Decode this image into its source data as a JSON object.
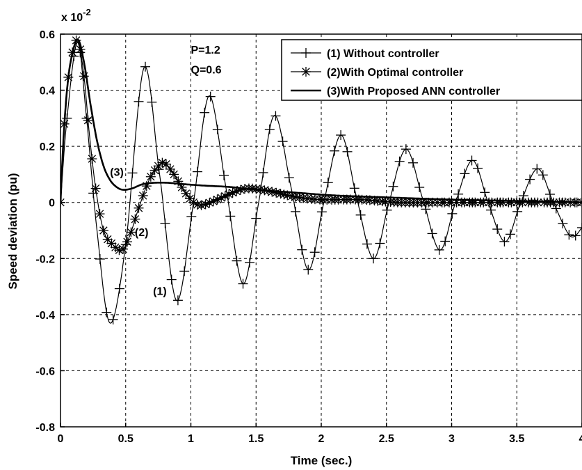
{
  "chart_data": {
    "type": "line",
    "title": "",
    "xlabel": "Time (sec.)",
    "ylabel": "Speed deviation (pu)",
    "y_multiplier": "x 10",
    "y_multiplier_exp": "-2",
    "xlim": [
      0,
      4
    ],
    "ylim": [
      -0.8,
      0.6
    ],
    "grid": true,
    "legend_position": "top-right",
    "x_ticks": [
      0,
      0.5,
      1,
      1.5,
      2,
      2.5,
      3,
      3.5,
      4
    ],
    "x_tick_labels": [
      "0",
      "0.5",
      "1",
      "1.5",
      "2",
      "2.5",
      "3",
      "3.5",
      "4"
    ],
    "y_ticks": [
      -0.8,
      -0.6,
      -0.4,
      -0.2,
      0,
      0.2,
      0.4,
      0.6
    ],
    "y_tick_labels": [
      "-0.8",
      "-0.6",
      "-0.4",
      "-0.2",
      "0",
      "0.2",
      "0.4",
      "0.6"
    ],
    "series": [
      {
        "name": "(1) Without controller",
        "marker": "plus",
        "color": "#000000",
        "x": [
          0,
          0.05,
          0.13,
          0.2,
          0.28,
          0.38,
          0.5,
          0.64,
          0.76,
          0.89,
          1.02,
          1.14,
          1.27,
          1.4,
          1.52,
          1.64,
          1.77,
          1.9,
          2.02,
          2.15,
          2.27,
          2.4,
          2.52,
          2.65,
          2.78,
          2.91,
          3.03,
          3.16,
          3.28,
          3.41,
          3.53,
          3.66,
          3.78,
          3.91,
          4.0
        ],
        "y": [
          0,
          0.3,
          0.57,
          0.3,
          -0.1,
          -0.43,
          -0.15,
          0.48,
          0.1,
          -0.35,
          0.0,
          0.38,
          0.05,
          -0.29,
          0.0,
          0.31,
          0.05,
          -0.24,
          0.0,
          0.24,
          0.02,
          -0.2,
          0.0,
          0.19,
          0.01,
          -0.17,
          0.0,
          0.15,
          0.0,
          -0.14,
          0.0,
          0.12,
          0.0,
          -0.12,
          -0.09
        ]
      },
      {
        "name": "(2)With Optimal controller",
        "marker": "star",
        "color": "#000000",
        "x": [
          0,
          0.03,
          0.07,
          0.13,
          0.18,
          0.22,
          0.27,
          0.33,
          0.4,
          0.47,
          0.53,
          0.6,
          0.68,
          0.75,
          0.8,
          0.87,
          0.95,
          1.02,
          1.08,
          1.15,
          1.25,
          1.35,
          1.45,
          1.6,
          1.8,
          2.0,
          2.3,
          2.6,
          3.0,
          3.5,
          4.0
        ],
        "y": [
          0,
          0.28,
          0.48,
          0.58,
          0.45,
          0.25,
          0.05,
          -0.1,
          -0.15,
          -0.17,
          -0.12,
          -0.02,
          0.08,
          0.13,
          0.14,
          0.1,
          0.04,
          0.0,
          -0.01,
          0.0,
          0.02,
          0.04,
          0.05,
          0.04,
          0.02,
          0.01,
          0.01,
          0.0,
          0.0,
          0.0,
          0.0
        ]
      },
      {
        "name": "(3)With Proposed ANN controller",
        "marker": "none",
        "color": "#000000",
        "x": [
          0,
          0.03,
          0.07,
          0.13,
          0.18,
          0.23,
          0.28,
          0.33,
          0.38,
          0.43,
          0.48,
          0.55,
          0.63,
          0.72,
          0.82,
          0.95,
          1.1,
          1.3,
          1.5,
          1.8,
          2.1,
          2.5,
          3.0,
          3.5,
          4.0
        ],
        "y": [
          0,
          0.28,
          0.48,
          0.58,
          0.5,
          0.35,
          0.22,
          0.13,
          0.08,
          0.055,
          0.045,
          0.05,
          0.065,
          0.07,
          0.07,
          0.065,
          0.06,
          0.055,
          0.045,
          0.035,
          0.025,
          0.018,
          0.01,
          0.005,
          0.0
        ]
      }
    ],
    "annotations": [
      {
        "text": "P=1.2",
        "x": 1.0,
        "y": 0.53
      },
      {
        "text": "Q=0.6",
        "x": 1.0,
        "y": 0.46
      },
      {
        "text": "(3)",
        "x": 0.38,
        "y": 0.095
      },
      {
        "text": "(2)",
        "x": 0.57,
        "y": -0.12
      },
      {
        "text": "(1)",
        "x": 0.71,
        "y": -0.33
      }
    ]
  }
}
